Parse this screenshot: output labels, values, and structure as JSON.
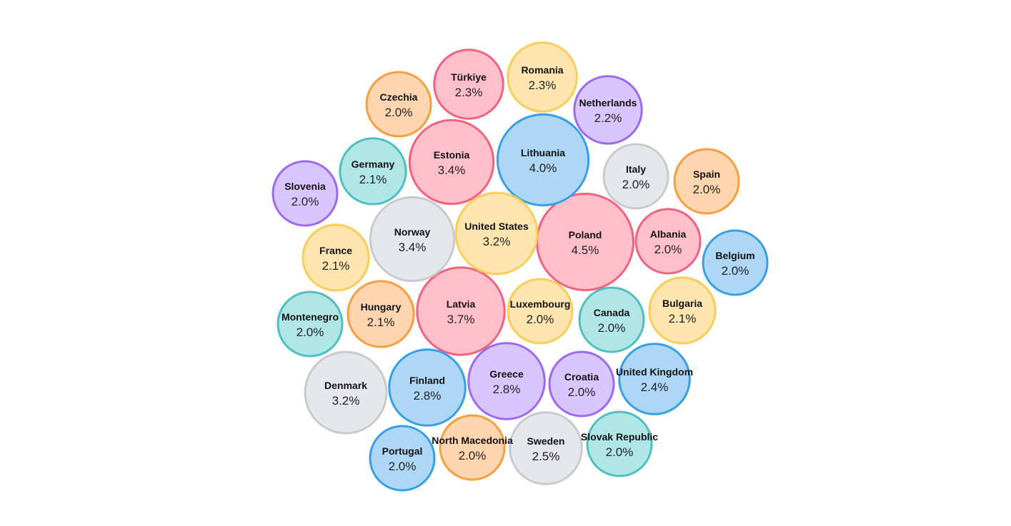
{
  "chart_data": {
    "type": "bubble",
    "value_suffix": "%",
    "palette": {
      "red": {
        "fill": "#ffc0cc",
        "stroke": "#f4617f"
      },
      "yellow": {
        "fill": "#ffe6b0",
        "stroke": "#fbcd57"
      },
      "orange": {
        "fill": "#ffd6b0",
        "stroke": "#f79f3e"
      },
      "purple": {
        "fill": "#dac6ff",
        "stroke": "#9d68f2"
      },
      "blue": {
        "fill": "#aed7f6",
        "stroke": "#379fe6"
      },
      "teal": {
        "fill": "#b1e6e6",
        "stroke": "#4fbfbf"
      },
      "grey": {
        "fill": "#e6e7ea",
        "stroke": "#c9cacf"
      }
    },
    "items": [
      {
        "name": "Poland",
        "value": 4.5,
        "color": "red"
      },
      {
        "name": "Lithuania",
        "value": 4.0,
        "color": "blue"
      },
      {
        "name": "Latvia",
        "value": 3.7,
        "color": "red"
      },
      {
        "name": "Estonia",
        "value": 3.4,
        "color": "red"
      },
      {
        "name": "Norway",
        "value": 3.4,
        "color": "grey"
      },
      {
        "name": "United States",
        "value": 3.2,
        "color": "yellow"
      },
      {
        "name": "Denmark",
        "value": 3.2,
        "color": "grey"
      },
      {
        "name": "Finland",
        "value": 2.8,
        "color": "blue"
      },
      {
        "name": "Greece",
        "value": 2.8,
        "color": "purple"
      },
      {
        "name": "Sweden",
        "value": 2.5,
        "color": "grey"
      },
      {
        "name": "United Kingdom",
        "value": 2.4,
        "color": "blue"
      },
      {
        "name": "Türkiye",
        "value": 2.3,
        "color": "red"
      },
      {
        "name": "Romania",
        "value": 2.3,
        "color": "yellow"
      },
      {
        "name": "Netherlands",
        "value": 2.2,
        "color": "purple"
      },
      {
        "name": "Germany",
        "value": 2.1,
        "color": "teal"
      },
      {
        "name": "France",
        "value": 2.1,
        "color": "yellow"
      },
      {
        "name": "Hungary",
        "value": 2.1,
        "color": "orange"
      },
      {
        "name": "Bulgaria",
        "value": 2.1,
        "color": "yellow"
      },
      {
        "name": "Czechia",
        "value": 2.0,
        "color": "orange"
      },
      {
        "name": "Slovenia",
        "value": 2.0,
        "color": "purple"
      },
      {
        "name": "Italy",
        "value": 2.0,
        "color": "grey"
      },
      {
        "name": "Spain",
        "value": 2.0,
        "color": "orange"
      },
      {
        "name": "Albania",
        "value": 2.0,
        "color": "red"
      },
      {
        "name": "Belgium",
        "value": 2.0,
        "color": "blue"
      },
      {
        "name": "Montenegro",
        "value": 2.0,
        "color": "teal"
      },
      {
        "name": "Luxembourg",
        "value": 2.0,
        "color": "yellow"
      },
      {
        "name": "Canada",
        "value": 2.0,
        "color": "teal"
      },
      {
        "name": "Croatia",
        "value": 2.0,
        "color": "purple"
      },
      {
        "name": "Portugal",
        "value": 2.0,
        "color": "blue"
      },
      {
        "name": "North Macedonia",
        "value": 2.0,
        "color": "orange"
      },
      {
        "name": "Slovak Republic",
        "value": 2.0,
        "color": "teal"
      }
    ]
  }
}
